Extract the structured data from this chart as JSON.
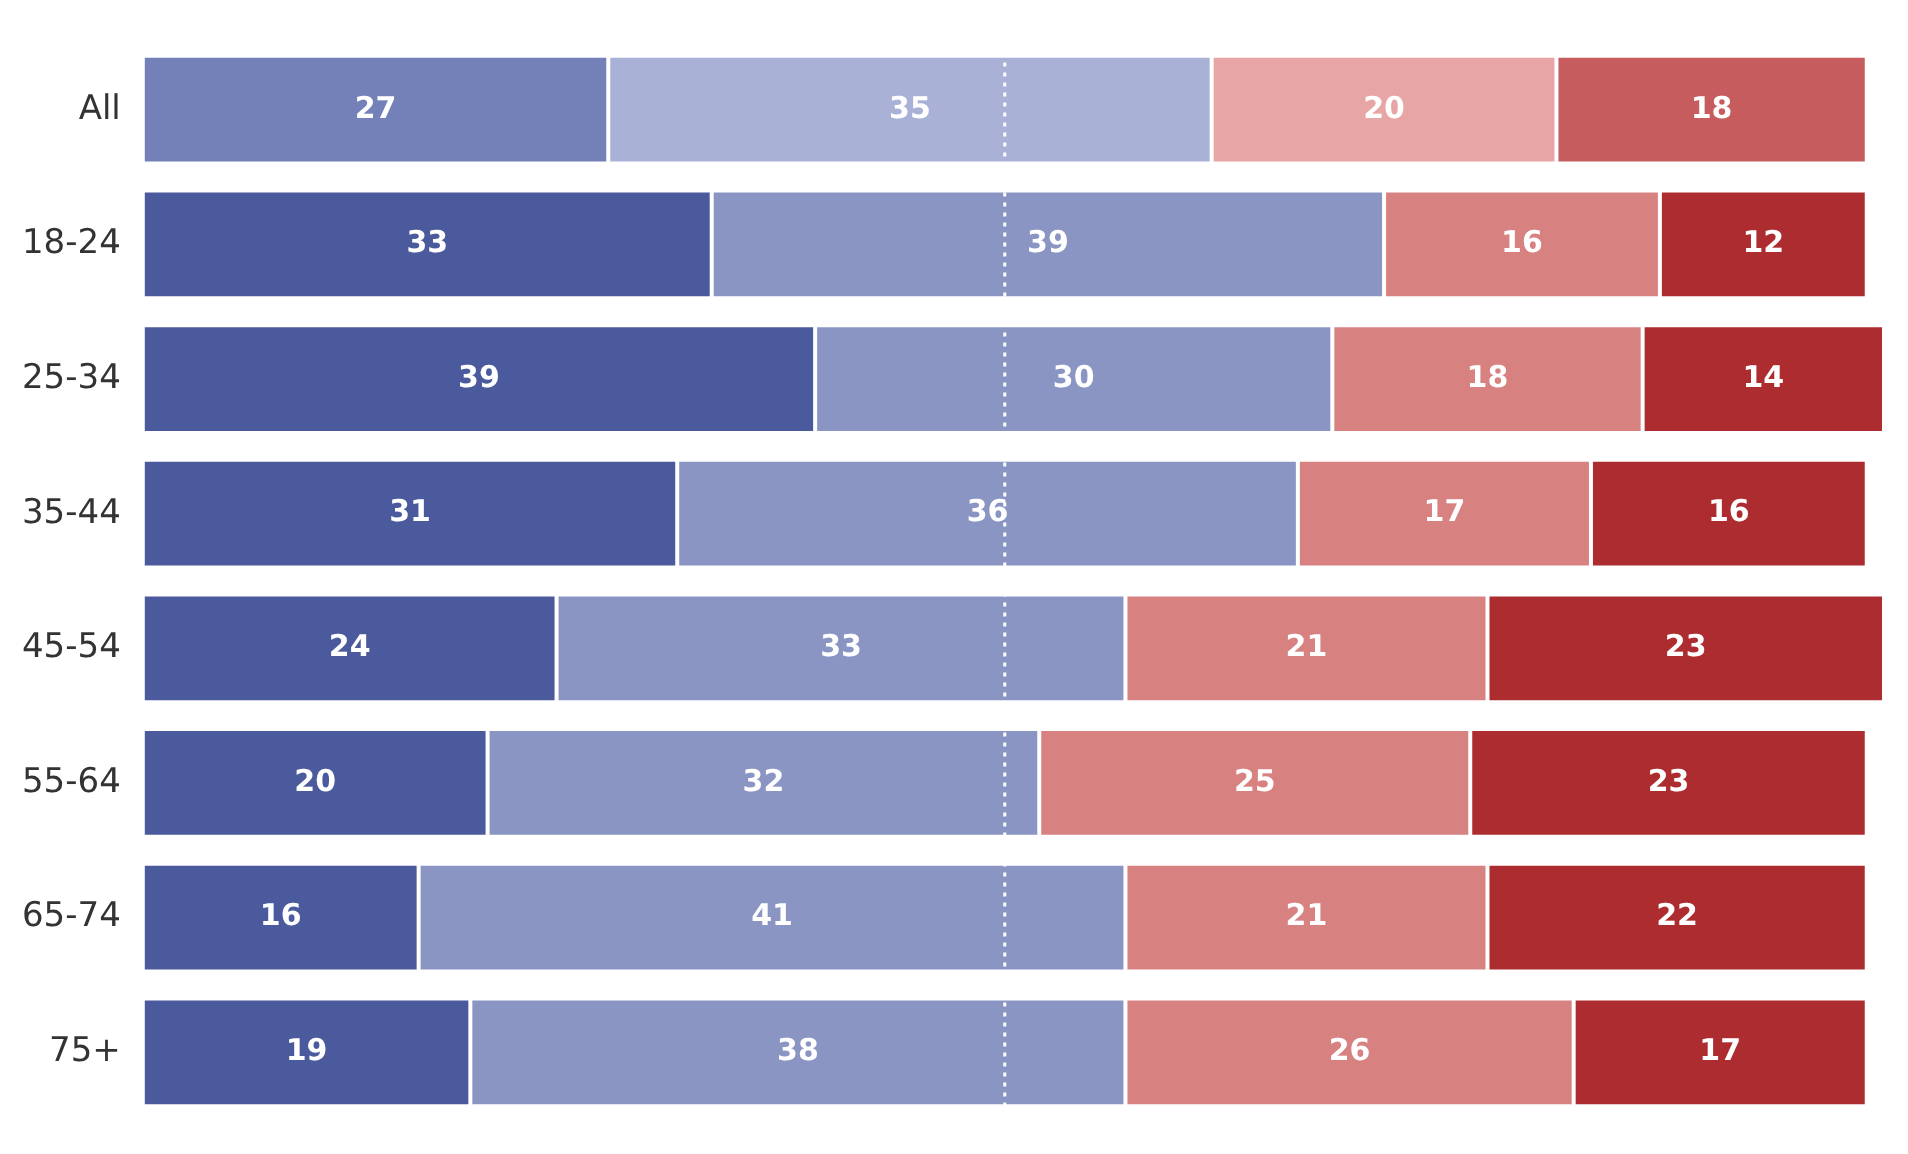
{
  "chart_data": {
    "type": "bar",
    "orientation": "horizontal",
    "stacked": true,
    "categories": [
      "All",
      "18-24",
      "25-34",
      "35-44",
      "45-54",
      "55-64",
      "65-74",
      "75+"
    ],
    "series": [
      {
        "colors": [
          "#7480b8",
          "#4b5a9c",
          "#4b5a9c",
          "#4b5a9c",
          "#4b5a9c",
          "#4b5a9c",
          "#4b5a9c",
          "#4b5a9c"
        ],
        "values": [
          27,
          33,
          39,
          31,
          24,
          20,
          16,
          19
        ]
      },
      {
        "colors": [
          "#a9b1d6",
          "#8a95c4",
          "#8a95c4",
          "#8a95c4",
          "#8a95c4",
          "#8a95c4",
          "#8a95c4",
          "#8a95c4"
        ],
        "values": [
          35,
          39,
          30,
          36,
          33,
          32,
          41,
          38
        ]
      },
      {
        "colors": [
          "#e8a5a5",
          "#d88181",
          "#d88181",
          "#d88181",
          "#d88181",
          "#d88181",
          "#d88181",
          "#d88181"
        ],
        "values": [
          20,
          16,
          18,
          17,
          21,
          25,
          21,
          26
        ]
      },
      {
        "colors": [
          "#c65c5e",
          "#ad2c2f",
          "#ad2c2f",
          "#ad2c2f",
          "#ad2c2f",
          "#ad2c2f",
          "#ad2c2f",
          "#ad2c2f"
        ],
        "values": [
          18,
          12,
          14,
          16,
          23,
          23,
          22,
          17
        ]
      }
    ],
    "xlim": [
      0,
      101
    ],
    "data_labels": true,
    "tick_labels": "y",
    "legend": false,
    "ref_lines": [
      {
        "axis": "x",
        "value": 50,
        "color": "#ffffff",
        "line_style": "dotted"
      }
    ]
  }
}
